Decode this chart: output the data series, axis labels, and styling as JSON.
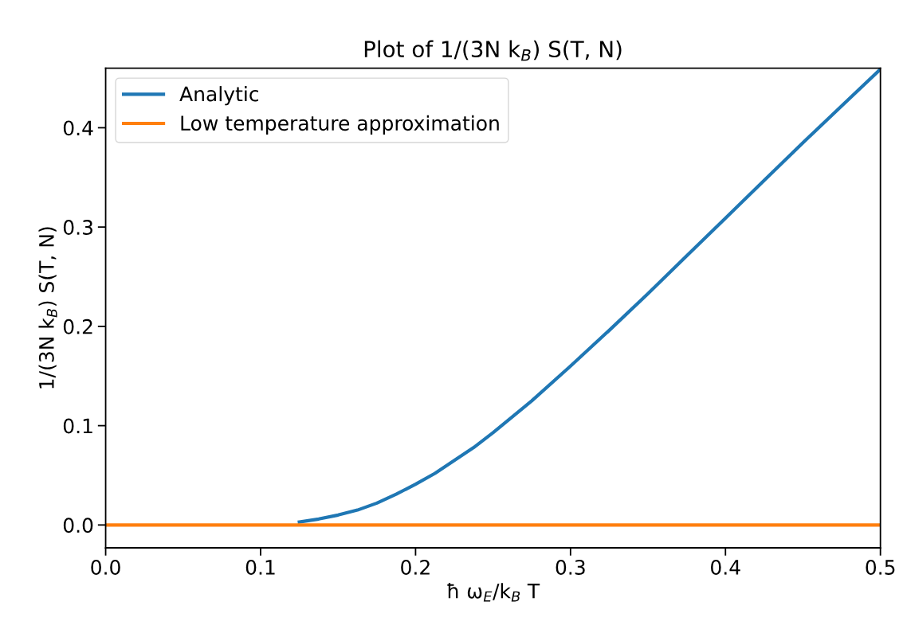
{
  "chart_data": {
    "type": "line",
    "title": "Plot of 1/(3N k$_{B}$) S(T, N)",
    "xlabel": "ħ ω$_{E}$/k$_{B}$ T",
    "ylabel": "1/(3N k$_{B}$) S(T, N)",
    "series": [
      {
        "name": "Analytic",
        "color": "#1f77b4",
        "x": [
          0.125,
          0.1375,
          0.15,
          0.1625,
          0.175,
          0.1875,
          0.2,
          0.2125,
          0.225,
          0.2375,
          0.25,
          0.275,
          0.3,
          0.325,
          0.35,
          0.375,
          0.4,
          0.425,
          0.45,
          0.475,
          0.5
        ],
        "values": [
          0.003,
          0.006,
          0.01,
          0.015,
          0.022,
          0.031,
          0.041,
          0.052,
          0.065,
          0.078,
          0.093,
          0.125,
          0.16,
          0.196,
          0.233,
          0.271,
          0.309,
          0.347,
          0.385,
          0.422,
          0.459
        ]
      },
      {
        "name": "Low temperature approximation",
        "color": "#ff7f0e",
        "x": [
          0,
          0.5
        ],
        "values": [
          0,
          0
        ]
      }
    ],
    "xlim": [
      0,
      0.5
    ],
    "ylim": [
      -0.023,
      0.46
    ],
    "xticks": [
      {
        "value": 0,
        "label": "0.0"
      },
      0.1,
      0.2,
      0.3,
      0.4,
      0.5
    ],
    "yticks": [
      {
        "value": 0,
        "label": "0.0"
      },
      0.1,
      0.2,
      0.3,
      0.4
    ],
    "grid": false,
    "legend": "top left",
    "marker": "none",
    "line_style": "solid"
  }
}
